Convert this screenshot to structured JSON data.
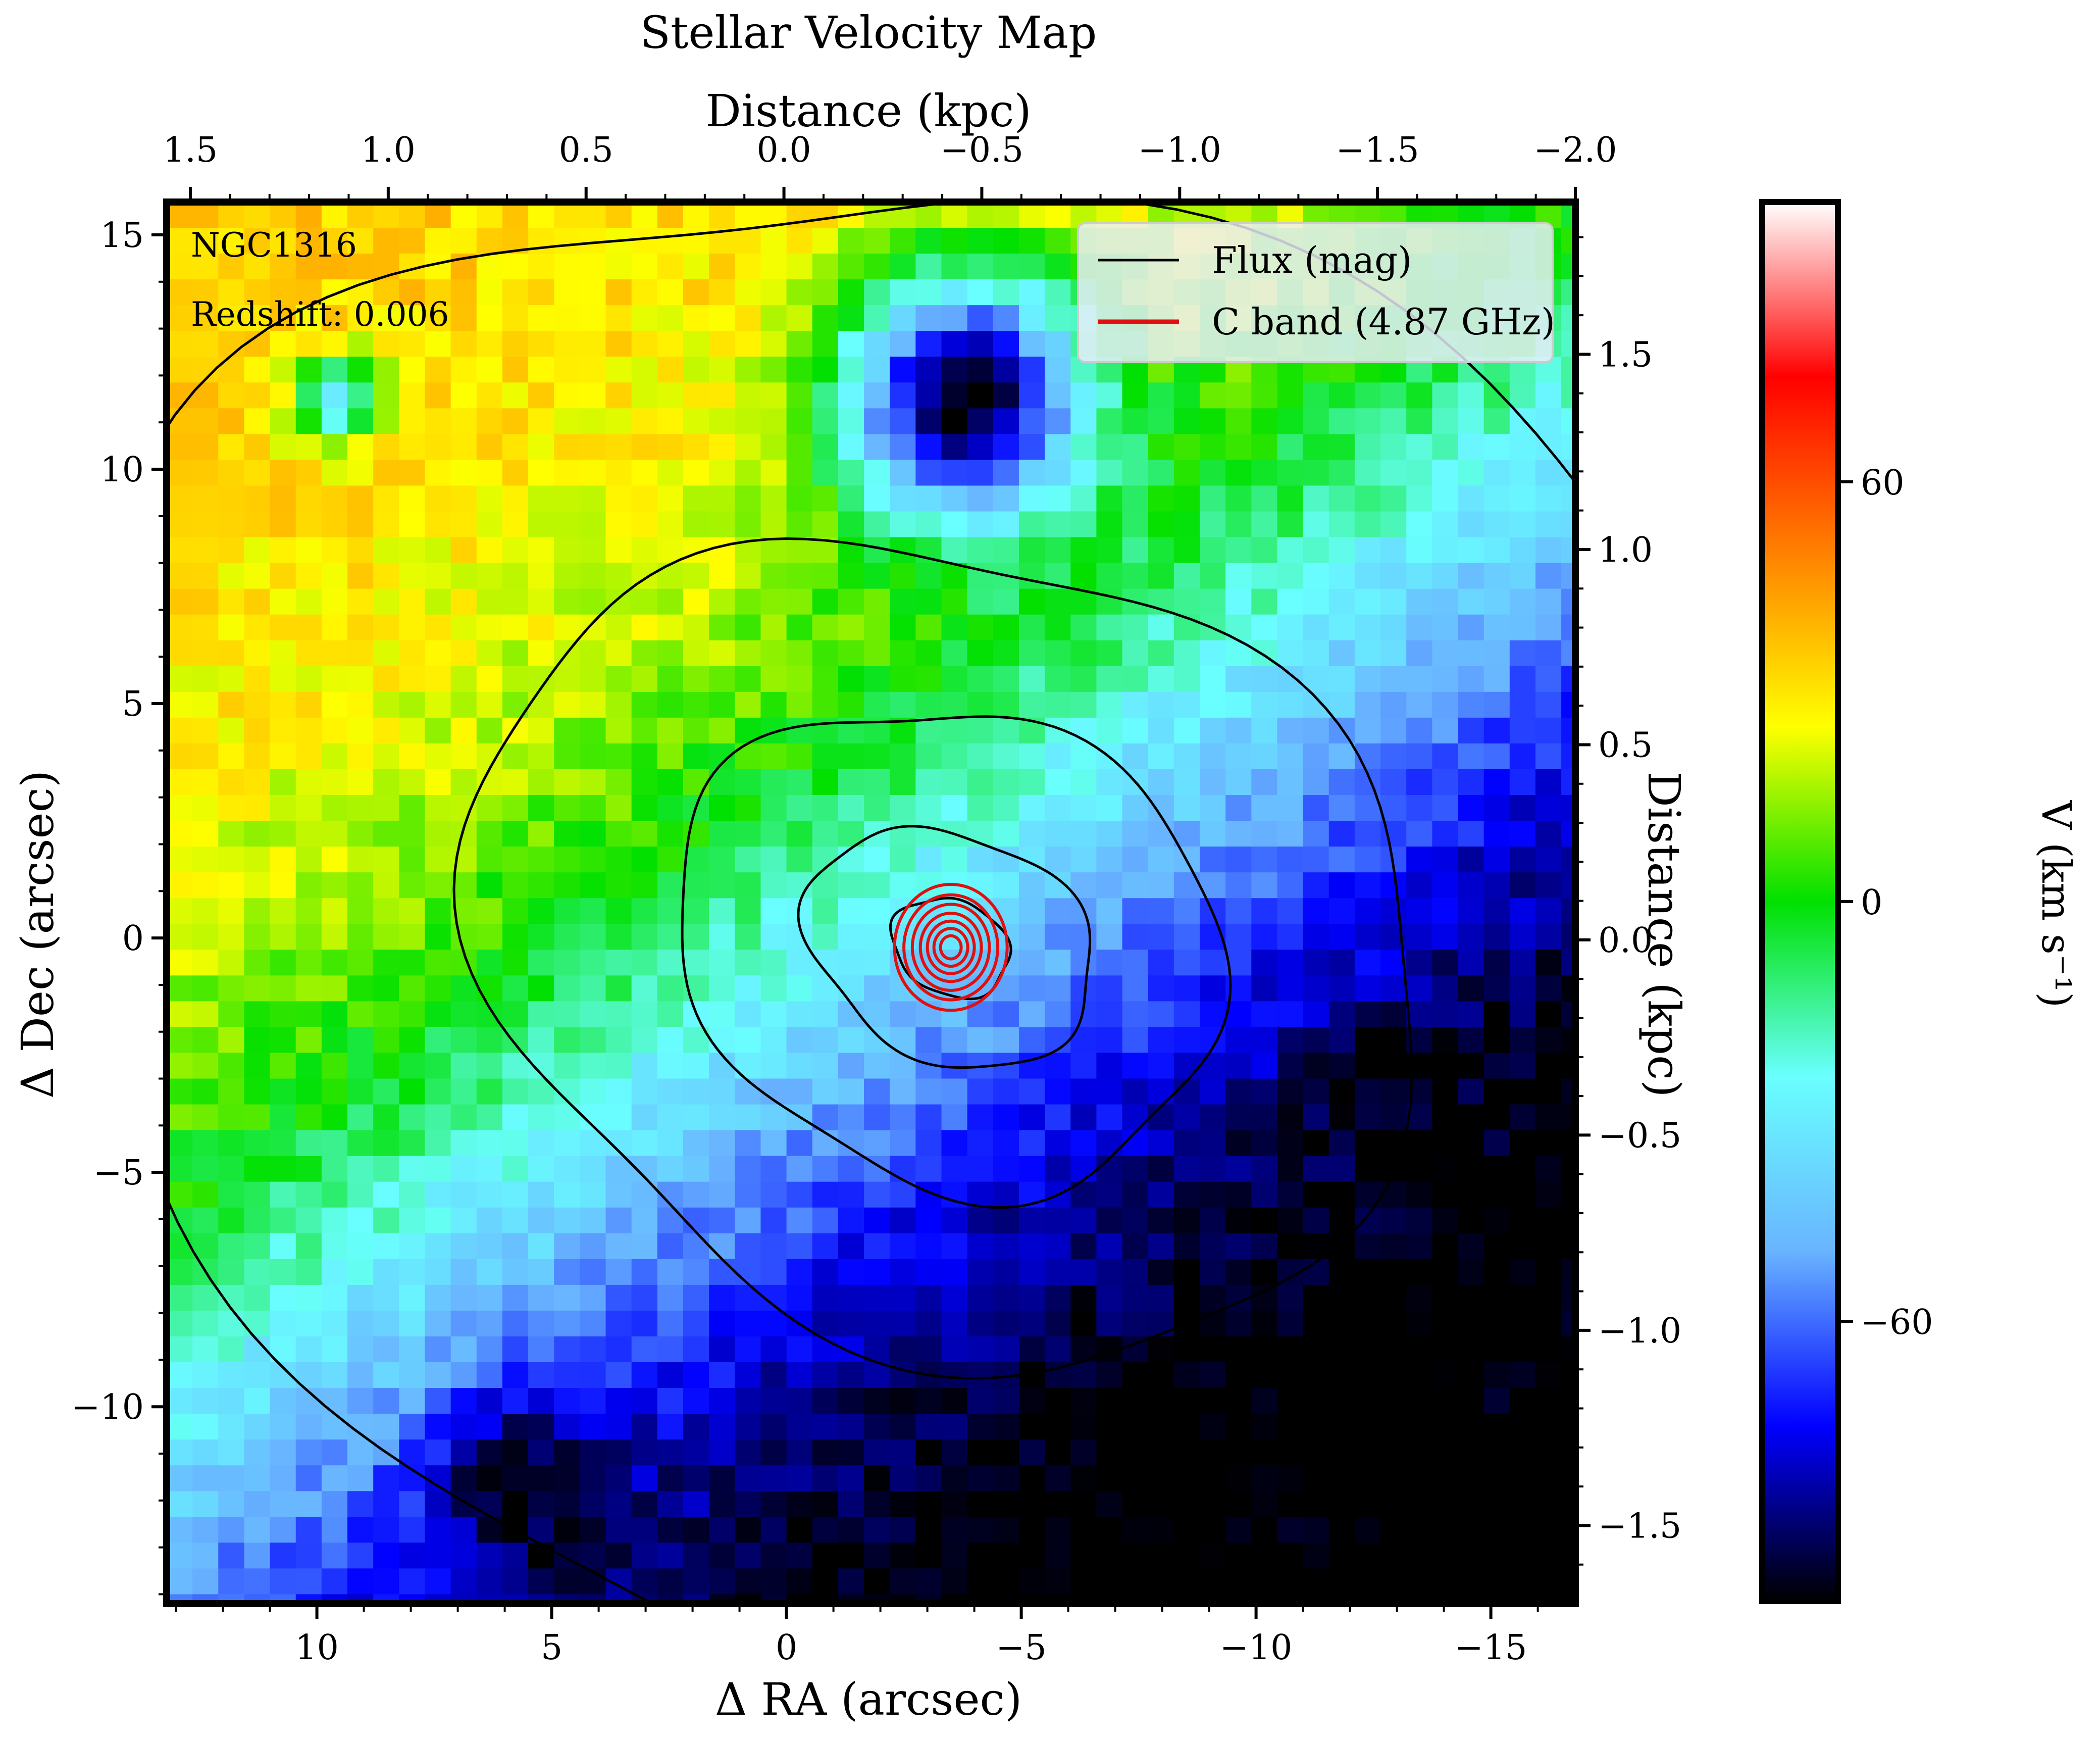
{
  "chart_data": {
    "type": "heatmap",
    "title": "Stellar Velocity Map",
    "xlabel": "Δ RA (arcsec)",
    "ylabel": "Δ Dec (arcsec)",
    "x2label": "Distance (kpc)",
    "y2label": "Distance (kpc)",
    "colorbar_label": "V (km s⁻¹)",
    "object_label": "NGC1316",
    "redshift_label": "Redshift: 0.006",
    "xlim": [
      13.2,
      -16.8
    ],
    "ylim": [
      -14.2,
      15.7
    ],
    "x2lim": [
      1.56,
      -2.0
    ],
    "y2lim": [
      -1.7,
      1.89
    ],
    "clim": [
      -100,
      100
    ],
    "x_ticks": [
      10,
      5,
      0,
      -5,
      -10,
      -15
    ],
    "x_tick_labels": [
      "10",
      "5",
      "0",
      "−5",
      "−10",
      "−15"
    ],
    "y_ticks": [
      15,
      10,
      5,
      0,
      -5,
      -10
    ],
    "y_tick_labels": [
      "15",
      "10",
      "5",
      "0",
      "−5",
      "−10"
    ],
    "x2_ticks": [
      1.5,
      1.0,
      0.5,
      0.0,
      -0.5,
      -1.0,
      -1.5,
      -2.0
    ],
    "x2_tick_labels": [
      "1.5",
      "1.0",
      "0.5",
      "0.0",
      "−0.5",
      "−1.0",
      "−1.5",
      "−2.0"
    ],
    "y2_ticks": [
      1.5,
      1.0,
      0.5,
      0.0,
      -0.5,
      -1.0,
      -1.5
    ],
    "y2_tick_labels": [
      "1.5",
      "1.0",
      "0.5",
      "0.0",
      "−0.5",
      "−1.0",
      "−1.5"
    ],
    "colorbar_ticks": [
      60,
      0,
      -60
    ],
    "colorbar_tick_labels": [
      "60",
      "0",
      "−60"
    ],
    "colormap": [
      "#000000",
      "#0000ff",
      "#69b4ff",
      "#69ffff",
      "#00e000",
      "#ffff00",
      "#ff8000",
      "#ff0000",
      "#ffffff"
    ],
    "legend_position": "top-right",
    "series": [
      {
        "name": "Flux (mag)",
        "color": "#000000",
        "type": "contour"
      },
      {
        "name": "C band (4.87 GHz)",
        "color": "#e01010",
        "type": "contour"
      }
    ],
    "radio_center": [
      -3.5,
      -0.2
    ],
    "velocity_field": {
      "description_values": "approximate velocity in km/s at sample positions",
      "points": [
        {
          "ra": 12,
          "dec": 12,
          "v": 52
        },
        {
          "ra": 8,
          "dec": 8,
          "v": 45
        },
        {
          "ra": 5,
          "dec": 12,
          "v": 35
        },
        {
          "ra": 2,
          "dec": 10,
          "v": 20
        },
        {
          "ra": 0,
          "dec": 5,
          "v": -10
        },
        {
          "ra": 10,
          "dec": 0,
          "v": 25
        },
        {
          "ra": 12,
          "dec": -5,
          "v": -5
        },
        {
          "ra": 5,
          "dec": -5,
          "v": -30
        },
        {
          "ra": -3,
          "dec": 0,
          "v": -55
        },
        {
          "ra": -5,
          "dec": 12,
          "v": -85
        },
        {
          "ra": -10,
          "dec": 5,
          "v": -70
        },
        {
          "ra": -13,
          "dec": -8,
          "v": -85
        },
        {
          "ra": 5,
          "dec": -12,
          "v": -85
        }
      ]
    }
  }
}
